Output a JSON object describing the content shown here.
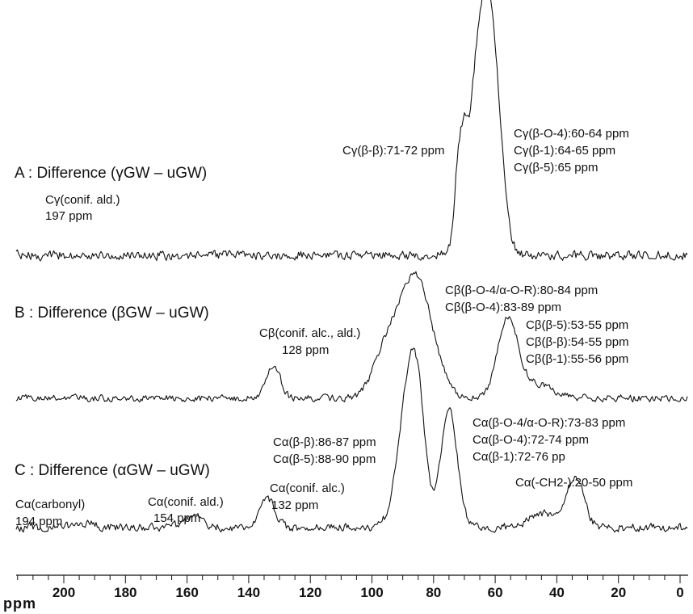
{
  "chart_data": {
    "type": "line",
    "title": "",
    "xlabel": "ppm",
    "x_reversed": true,
    "xlim": [
      0,
      215
    ],
    "x_major_ticks": [
      200,
      180,
      160,
      140,
      120,
      100,
      80,
      60,
      40,
      20,
      0
    ],
    "x_minor_step": 5,
    "tick_labels": [
      "200",
      "180",
      "160",
      "140",
      "120",
      "100",
      "80",
      "60",
      "40",
      "20",
      "0"
    ],
    "grid": false,
    "legend": "none",
    "series": [
      {
        "name": "A : Difference (γGW – uGW)",
        "peaks": [
          {
            "center": 72,
            "height": 0.3,
            "width": 1.2
          },
          {
            "center": 70,
            "height": 0.22,
            "width": 1.0
          },
          {
            "center": 64,
            "height": 1.0,
            "width": 3.8
          },
          {
            "center": 60,
            "height": 0.3,
            "width": 2.5
          }
        ],
        "annotations": [
          {
            "lines": [
              "Cγ(β-β):71-72 ppm"
            ]
          },
          {
            "lines": [
              "Cγ(β-O-4):60-64 ppm",
              "Cγ(β-1):64-65 ppm",
              "Cγ(β-5):65 ppm"
            ]
          },
          {
            "lines": [
              "Cγ(conif. ald.)",
              "197 ppm"
            ]
          }
        ]
      },
      {
        "name": "B : Difference (βGW – uGW)",
        "peaks": [
          {
            "center": 132,
            "height": 0.28,
            "width": 2.2
          },
          {
            "center": 86,
            "height": 1.0,
            "width": 5.5
          },
          {
            "center": 96,
            "height": 0.3,
            "width": 4.0
          },
          {
            "center": 56,
            "height": 0.62,
            "width": 3.2
          },
          {
            "center": 48,
            "height": 0.12,
            "width": 6.0
          }
        ],
        "annotations": [
          {
            "lines": [
              "Cβ(β-O-4/α-O-R):80-84 ppm",
              "Cβ(β-O-4):83-89 ppm"
            ]
          },
          {
            "lines": [
              "Cβ(β-5):53-55 ppm",
              "Cβ(β-β):54-55 ppm",
              "Cβ(β-1):55-56 ppm"
            ]
          },
          {
            "lines": [
              "Cβ(conif. alc., ald.)",
              "128 ppm"
            ]
          }
        ]
      },
      {
        "name": "C : Difference (αGW – uGW)",
        "peaks": [
          {
            "center": 194,
            "height": 0.03,
            "width": 4.0
          },
          {
            "center": 158,
            "height": 0.1,
            "width": 3.0
          },
          {
            "center": 134,
            "height": 0.22,
            "width": 2.5
          },
          {
            "center": 88,
            "height": 1.0,
            "width": 3.5
          },
          {
            "center": 85,
            "height": 0.5,
            "width": 2.5
          },
          {
            "center": 75,
            "height": 0.9,
            "width": 2.6
          },
          {
            "center": 34,
            "height": 0.36,
            "width": 2.8
          },
          {
            "center": 44,
            "height": 0.1,
            "width": 5.0
          }
        ],
        "annotations": [
          {
            "lines": [
              "Cα(β-O-4/α-O-R):73-83 ppm",
              "Cα(β-O-4):72-74 ppm",
              "Cα(β-1):72-76 pp"
            ]
          },
          {
            "lines": [
              "Cα(β-β):86-87 ppm",
              "Cα(β-5):88-90 ppm"
            ]
          },
          {
            "lines": [
              "Cα(-CH2-):20-50 ppm"
            ]
          },
          {
            "lines": [
              "Cα(carbonyl)",
              "194 ppm"
            ]
          },
          {
            "lines": [
              "Cα(conif. ald.)",
              "154 ppm"
            ]
          },
          {
            "lines": [
              "Cα(conif. alc.)",
              "132 ppm"
            ]
          }
        ]
      }
    ]
  }
}
